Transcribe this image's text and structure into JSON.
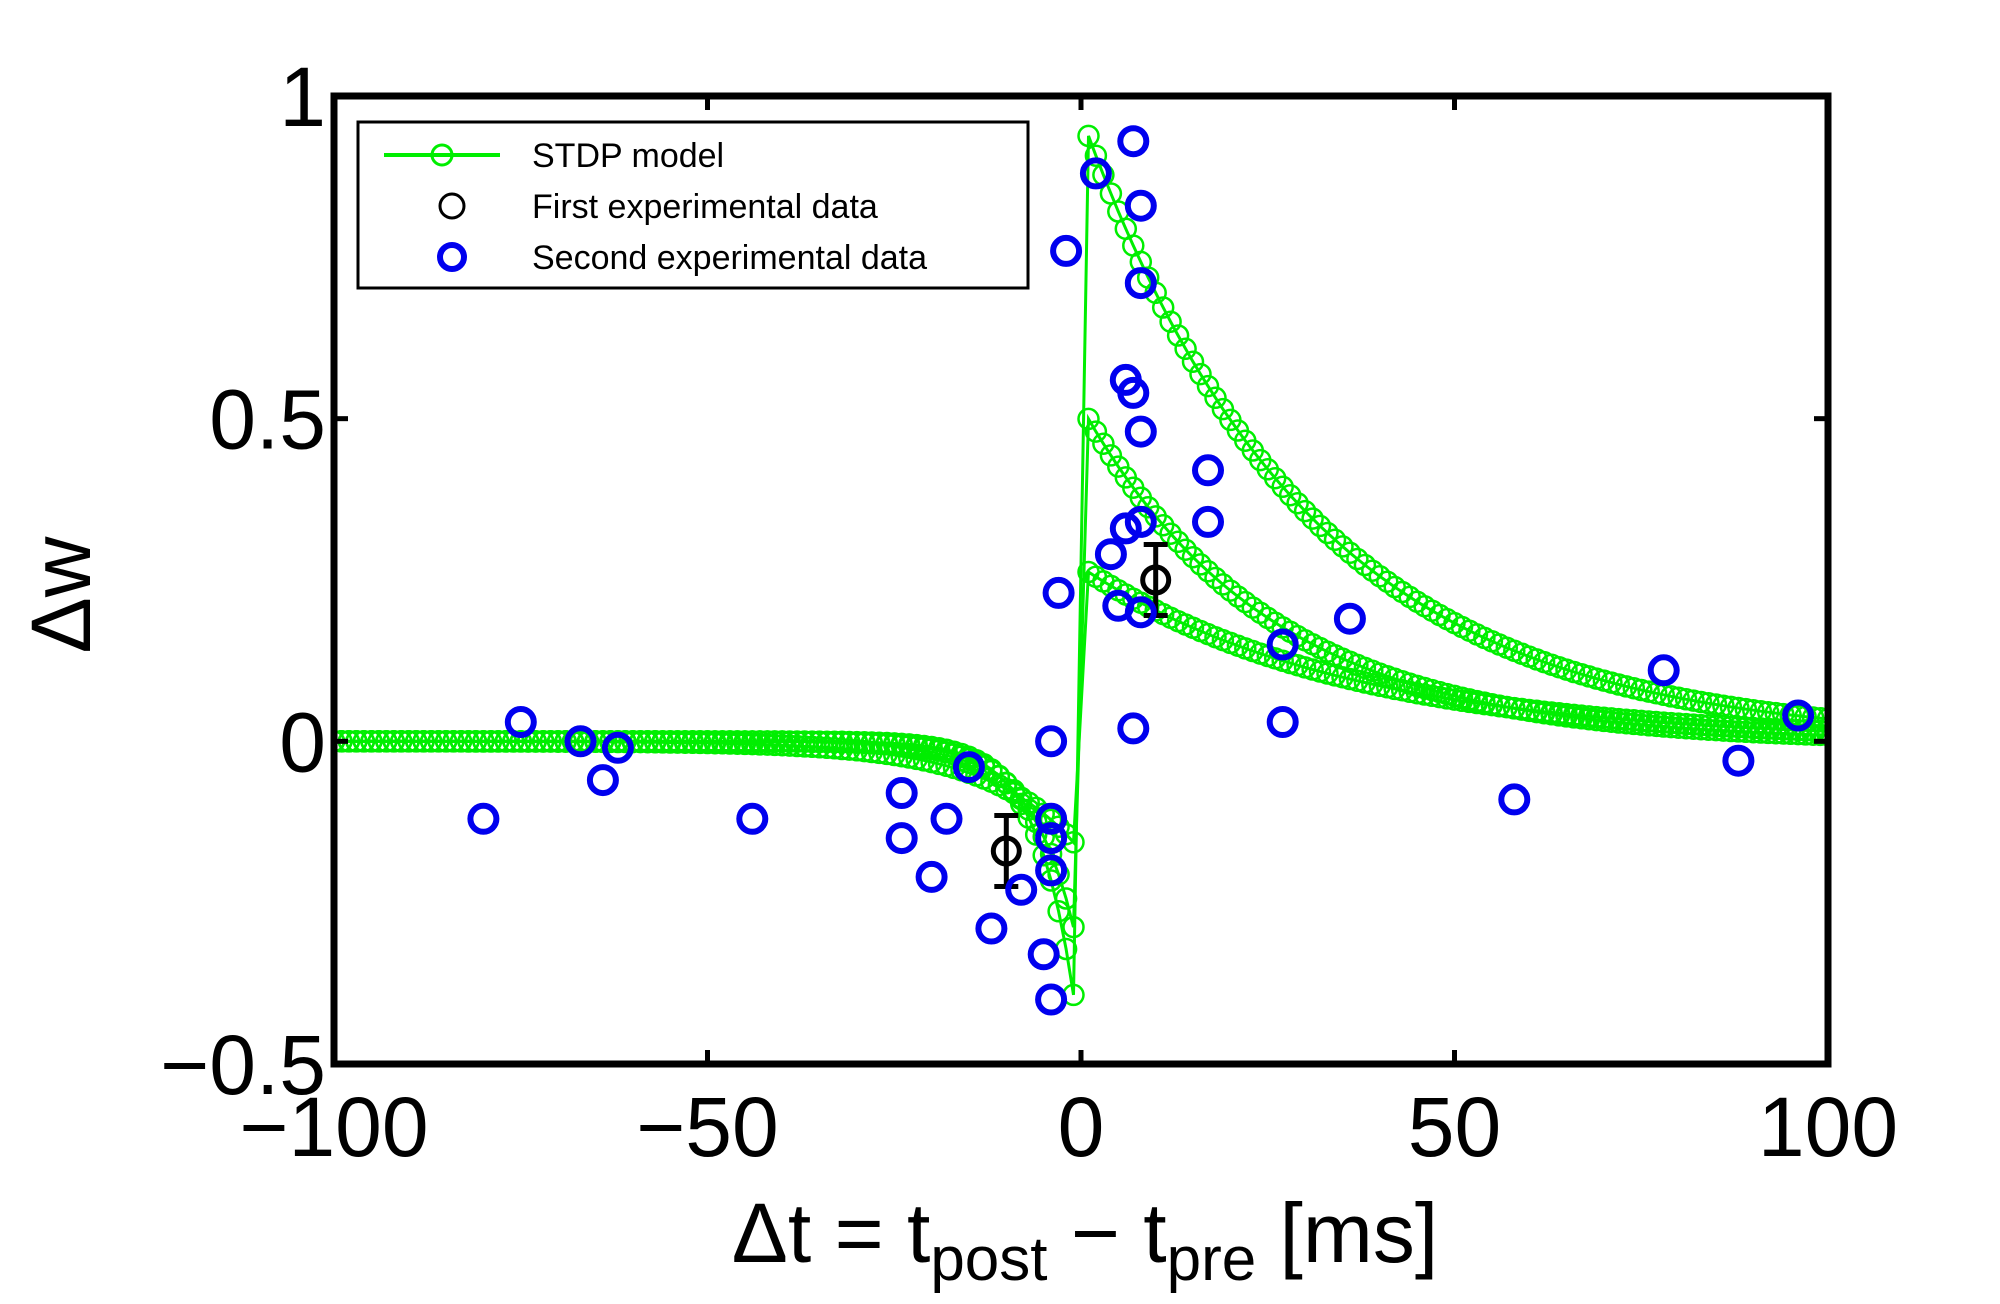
{
  "colors": {
    "model": "#00ee00",
    "first_data": "#000000",
    "second_data": "#0000ee",
    "axes": "#000000",
    "background": "#ffffff"
  },
  "chart_data": {
    "type": "scatter",
    "title": "",
    "xlabel": {
      "main": "Δt = t",
      "sub1": "post",
      "mid": " − t",
      "sub2": "pre",
      "tail": " [ms]"
    },
    "ylabel": "Δw",
    "xlim": [
      -100,
      100
    ],
    "ylim": [
      -0.5,
      1
    ],
    "xticks": [
      -100,
      -50,
      0,
      50,
      100
    ],
    "xtick_labels": [
      "−100",
      "−50",
      "0",
      "50",
      "100"
    ],
    "yticks": [
      -0.5,
      0,
      0.5,
      1
    ],
    "ytick_labels": [
      "−0.5",
      "0",
      "0.5",
      "1"
    ],
    "grid": false,
    "legend_position": "top-left",
    "series": [
      {
        "name": "STDP model",
        "kind": "model-curves",
        "description": "Exponential STDP windows: LTP branch A_plus*exp(-dt/tau_plus) for dt>0, LTD branch -A_minus*exp(dt/tau_minus) for dt<0",
        "ltp_amplitudes": [
          0.97,
          0.52,
          0.27
        ],
        "ltp_tau": [
          30,
          25,
          35
        ],
        "ltd_amplitudes": [
          0.48,
          0.34,
          0.17
        ],
        "ltd_tau": [
          5,
          6,
          12
        ],
        "step": 1
      },
      {
        "name": "First experimental data",
        "kind": "errorbar",
        "points": [
          {
            "x": -10,
            "y": -0.17,
            "err": 0.055
          },
          {
            "x": 10,
            "y": 0.25,
            "err": 0.055
          }
        ]
      },
      {
        "name": "Second experimental data",
        "kind": "scatter",
        "points": [
          {
            "x": -80,
            "y": -0.12
          },
          {
            "x": -75,
            "y": 0.03
          },
          {
            "x": -67,
            "y": 0.0
          },
          {
            "x": -64,
            "y": -0.06
          },
          {
            "x": -62,
            "y": -0.01
          },
          {
            "x": -44,
            "y": -0.12
          },
          {
            "x": -24,
            "y": -0.08
          },
          {
            "x": -24,
            "y": -0.15
          },
          {
            "x": -20,
            "y": -0.21
          },
          {
            "x": -18,
            "y": -0.12
          },
          {
            "x": -15,
            "y": -0.04
          },
          {
            "x": -12,
            "y": -0.29
          },
          {
            "x": -8,
            "y": -0.23
          },
          {
            "x": -5,
            "y": -0.33
          },
          {
            "x": -4,
            "y": -0.4
          },
          {
            "x": -4,
            "y": -0.12
          },
          {
            "x": -4,
            "y": -0.15
          },
          {
            "x": -4,
            "y": -0.2
          },
          {
            "x": -4,
            "y": 0.0
          },
          {
            "x": -3,
            "y": 0.23
          },
          {
            "x": -2,
            "y": 0.76
          },
          {
            "x": 2,
            "y": 0.88
          },
          {
            "x": 4,
            "y": 0.29
          },
          {
            "x": 5,
            "y": 0.21
          },
          {
            "x": 6,
            "y": 0.56
          },
          {
            "x": 6,
            "y": 0.33
          },
          {
            "x": 7,
            "y": 0.54
          },
          {
            "x": 7,
            "y": 0.02
          },
          {
            "x": 7,
            "y": 0.93
          },
          {
            "x": 8,
            "y": 0.83
          },
          {
            "x": 8,
            "y": 0.71
          },
          {
            "x": 8,
            "y": 0.48
          },
          {
            "x": 8,
            "y": 0.34
          },
          {
            "x": 8,
            "y": 0.2
          },
          {
            "x": 17,
            "y": 0.42
          },
          {
            "x": 17,
            "y": 0.34
          },
          {
            "x": 27,
            "y": 0.15
          },
          {
            "x": 27,
            "y": 0.03
          },
          {
            "x": 36,
            "y": 0.19
          },
          {
            "x": 58,
            "y": -0.09
          },
          {
            "x": 78,
            "y": 0.11
          },
          {
            "x": 88,
            "y": -0.03
          },
          {
            "x": 96,
            "y": 0.04
          }
        ]
      }
    ]
  }
}
